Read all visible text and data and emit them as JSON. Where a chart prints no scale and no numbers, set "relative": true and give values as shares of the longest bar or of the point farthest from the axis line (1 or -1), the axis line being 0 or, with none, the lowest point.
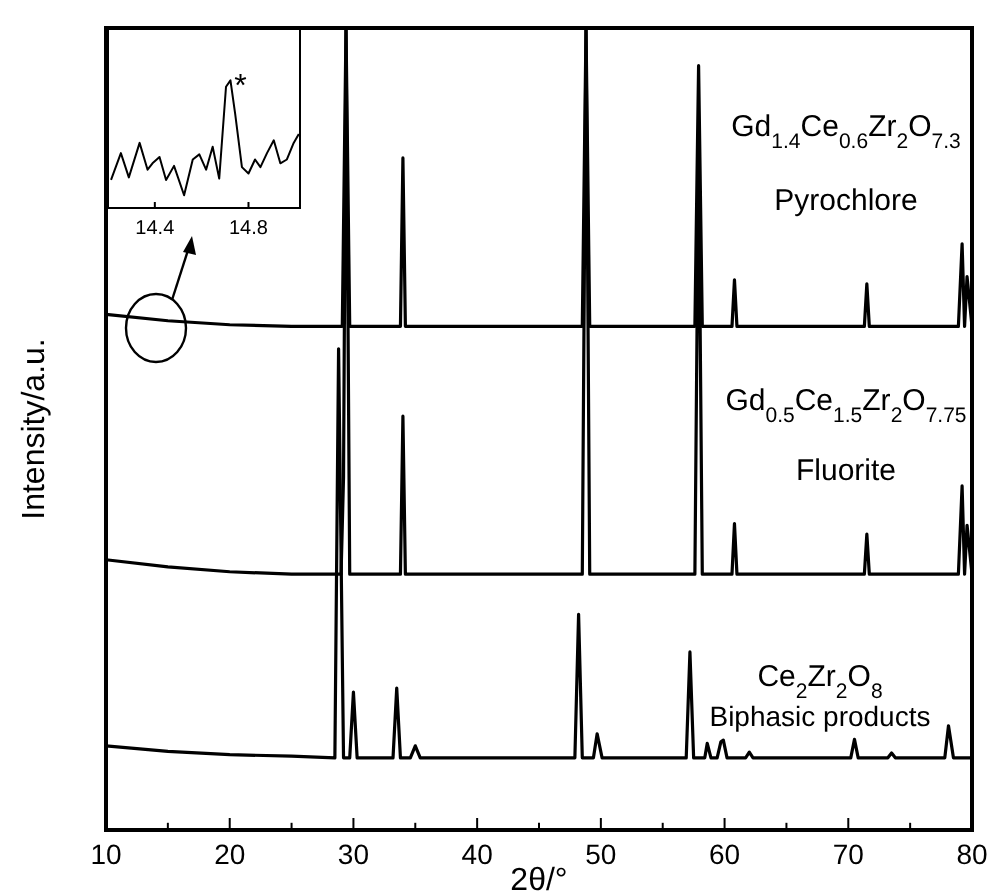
{
  "chart_data": [
    {
      "type": "line",
      "relative": true,
      "xlabel": "2θ/°",
      "ylabel": "Intensity/a.u.",
      "xlim": [
        10,
        80
      ],
      "xticks": [
        10,
        {
          "value": 15,
          "label": null
        },
        20,
        {
          "value": 25,
          "label": null
        },
        30,
        {
          "value": 35,
          "label": null
        },
        40,
        {
          "value": 45,
          "label": null
        },
        50,
        {
          "value": 55,
          "label": null
        },
        60,
        {
          "value": 65,
          "label": null
        },
        70,
        {
          "value": 75,
          "label": null
        },
        80
      ],
      "tick_labels": "x",
      "legend": false,
      "series": [
        {
          "name": "Gd$_{1.4}$Ce$_{0.6}$Zr$_{2}$O$_{7.3}$",
          "color": "#000000",
          "x": [
            10,
            15,
            20,
            25,
            29.1,
            29.4,
            29.7,
            33.8,
            34.0,
            34.2,
            48.5,
            48.8,
            49.1,
            57.6,
            57.9,
            58.2,
            60.6,
            60.8,
            61.0,
            71.3,
            71.5,
            71.7,
            78.9,
            79.2,
            79.4,
            79.6,
            80
          ],
          "values": [
            0.643,
            0.635,
            0.63,
            0.628,
            0.628,
            1.0,
            0.628,
            0.628,
            0.838,
            0.628,
            0.628,
            1.0,
            0.628,
            0.628,
            0.953,
            0.628,
            0.628,
            0.686,
            0.628,
            0.628,
            0.681,
            0.628,
            0.628,
            0.731,
            0.628,
            0.69,
            0.628
          ]
        },
        {
          "name": "Gd$_{0.5}$Ce$_{1.5}$Zr$_{2}$O$_{7.75}$",
          "color": "#000000",
          "x": [
            10,
            15,
            20,
            25,
            29.0,
            29.2,
            29.4,
            29.7,
            33.8,
            34.0,
            34.2,
            48.5,
            48.8,
            49.1,
            57.6,
            57.9,
            58.2,
            60.6,
            60.8,
            61.0,
            71.3,
            71.5,
            71.7,
            78.9,
            79.2,
            79.4,
            79.6,
            80
          ],
          "values": [
            0.337,
            0.328,
            0.322,
            0.319,
            0.319,
            0.44,
            1.0,
            0.319,
            0.319,
            0.516,
            0.319,
            0.319,
            1.0,
            0.319,
            0.319,
            0.85,
            0.319,
            0.319,
            0.382,
            0.319,
            0.319,
            0.369,
            0.319,
            0.319,
            0.429,
            0.319,
            0.38,
            0.319
          ]
        },
        {
          "name": "Ce$_{2}$Zr$_{2}$O$_{8}$",
          "color": "#000000",
          "x": [
            10,
            15,
            20,
            25,
            28.5,
            28.8,
            29.2,
            29.7,
            30.0,
            30.3,
            33.2,
            33.5,
            33.8,
            34.6,
            35.0,
            35.4,
            47.9,
            48.2,
            48.5,
            49.4,
            49.7,
            50.1,
            56.9,
            57.2,
            57.5,
            58.4,
            58.6,
            58.9,
            59.4,
            59.7,
            59.9,
            60.2,
            61.7,
            62.0,
            62.3,
            70.2,
            70.5,
            70.8,
            73.2,
            73.5,
            73.8,
            77.8,
            78.1,
            78.5,
            80
          ],
          "values": [
            0.105,
            0.098,
            0.094,
            0.092,
            0.09,
            0.6,
            0.09,
            0.09,
            0.172,
            0.09,
            0.09,
            0.177,
            0.09,
            0.09,
            0.105,
            0.09,
            0.09,
            0.269,
            0.09,
            0.09,
            0.12,
            0.09,
            0.09,
            0.222,
            0.09,
            0.09,
            0.108,
            0.09,
            0.09,
            0.11,
            0.112,
            0.09,
            0.09,
            0.097,
            0.09,
            0.09,
            0.113,
            0.09,
            0.09,
            0.096,
            0.09,
            0.09,
            0.13,
            0.09,
            0.09
          ]
        }
      ],
      "annotations": [
        "Pyrochlore",
        "Fluorite",
        "Biphasic products"
      ]
    },
    {
      "type": "line",
      "relative": true,
      "xlim": [
        14.2,
        15.02
      ],
      "xticks": [
        14.4,
        14.8
      ],
      "tick_labels": "x",
      "legend": false,
      "series": [
        {
          "color": "#000000",
          "x": [
            14.213,
            14.255,
            14.289,
            14.335,
            14.369,
            14.39,
            14.42,
            14.448,
            14.482,
            14.525,
            14.562,
            14.59,
            14.619,
            14.647,
            14.675,
            14.704,
            14.723,
            14.743,
            14.772,
            14.8,
            14.828,
            14.851,
            14.879,
            14.908,
            14.936,
            14.964,
            14.993,
            15.015
          ],
          "values": [
            0.22,
            0.43,
            0.24,
            0.51,
            0.3,
            0.35,
            0.4,
            0.22,
            0.33,
            0.1,
            0.38,
            0.42,
            0.3,
            0.48,
            0.23,
            0.95,
            1.0,
            0.74,
            0.32,
            0.27,
            0.38,
            0.32,
            0.43,
            0.53,
            0.35,
            0.38,
            0.51,
            0.58
          ]
        }
      ],
      "annotations": [
        {
          "text": "*",
          "x": 14.723,
          "y": 1.0
        }
      ]
    }
  ]
}
